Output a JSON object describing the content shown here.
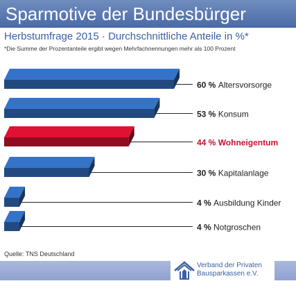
{
  "header": {
    "title": "Sparmotive der Bundesbürger",
    "subtitle": "Herbstumfrage 2015 · Durchschnittliche Anteile in %*",
    "footnote": "*Die Summe der Prozentanteile ergibt wegen Mehrfachnennungen mehr als 100 Prozent"
  },
  "chart_data": {
    "type": "bar",
    "orientation": "horizontal",
    "title": "Sparmotive der Bundesbürger",
    "subtitle": "Herbstumfrage 2015 · Durchschnittliche Anteile in %*",
    "categories": [
      "Altersvorsorge",
      "Konsum",
      "Wohneigentum",
      "Kapitalanlage",
      "Ausbildung Kinder",
      "Notgroschen"
    ],
    "values": [
      60,
      53,
      44,
      30,
      4,
      4
    ],
    "unit": "%",
    "highlight": "Wohneigentum",
    "colors": {
      "bar": "#2f67b3",
      "highlight": "#c8102e",
      "leader": "#222222"
    },
    "grid": false,
    "legend": "none"
  },
  "labels": [
    {
      "value": "60",
      "unit": "%",
      "name": "Altersvorsorge"
    },
    {
      "value": "53",
      "unit": "%",
      "name": "Konsum"
    },
    {
      "value": "44",
      "unit": "%",
      "name": "Wohneigentum"
    },
    {
      "value": "30",
      "unit": "%",
      "name": "Kapitalanlage"
    },
    {
      "value": "4",
      "unit": "%",
      "name": "Ausbildung Kinder"
    },
    {
      "value": "4",
      "unit": "%",
      "name": "Notgroschen"
    }
  ],
  "footer": {
    "source": "Quelle: TNS Deutschland",
    "org_line1": "Verband der Privaten",
    "org_line2": "Bausparkassen e.V.",
    "logo_icon": "house-icon"
  }
}
